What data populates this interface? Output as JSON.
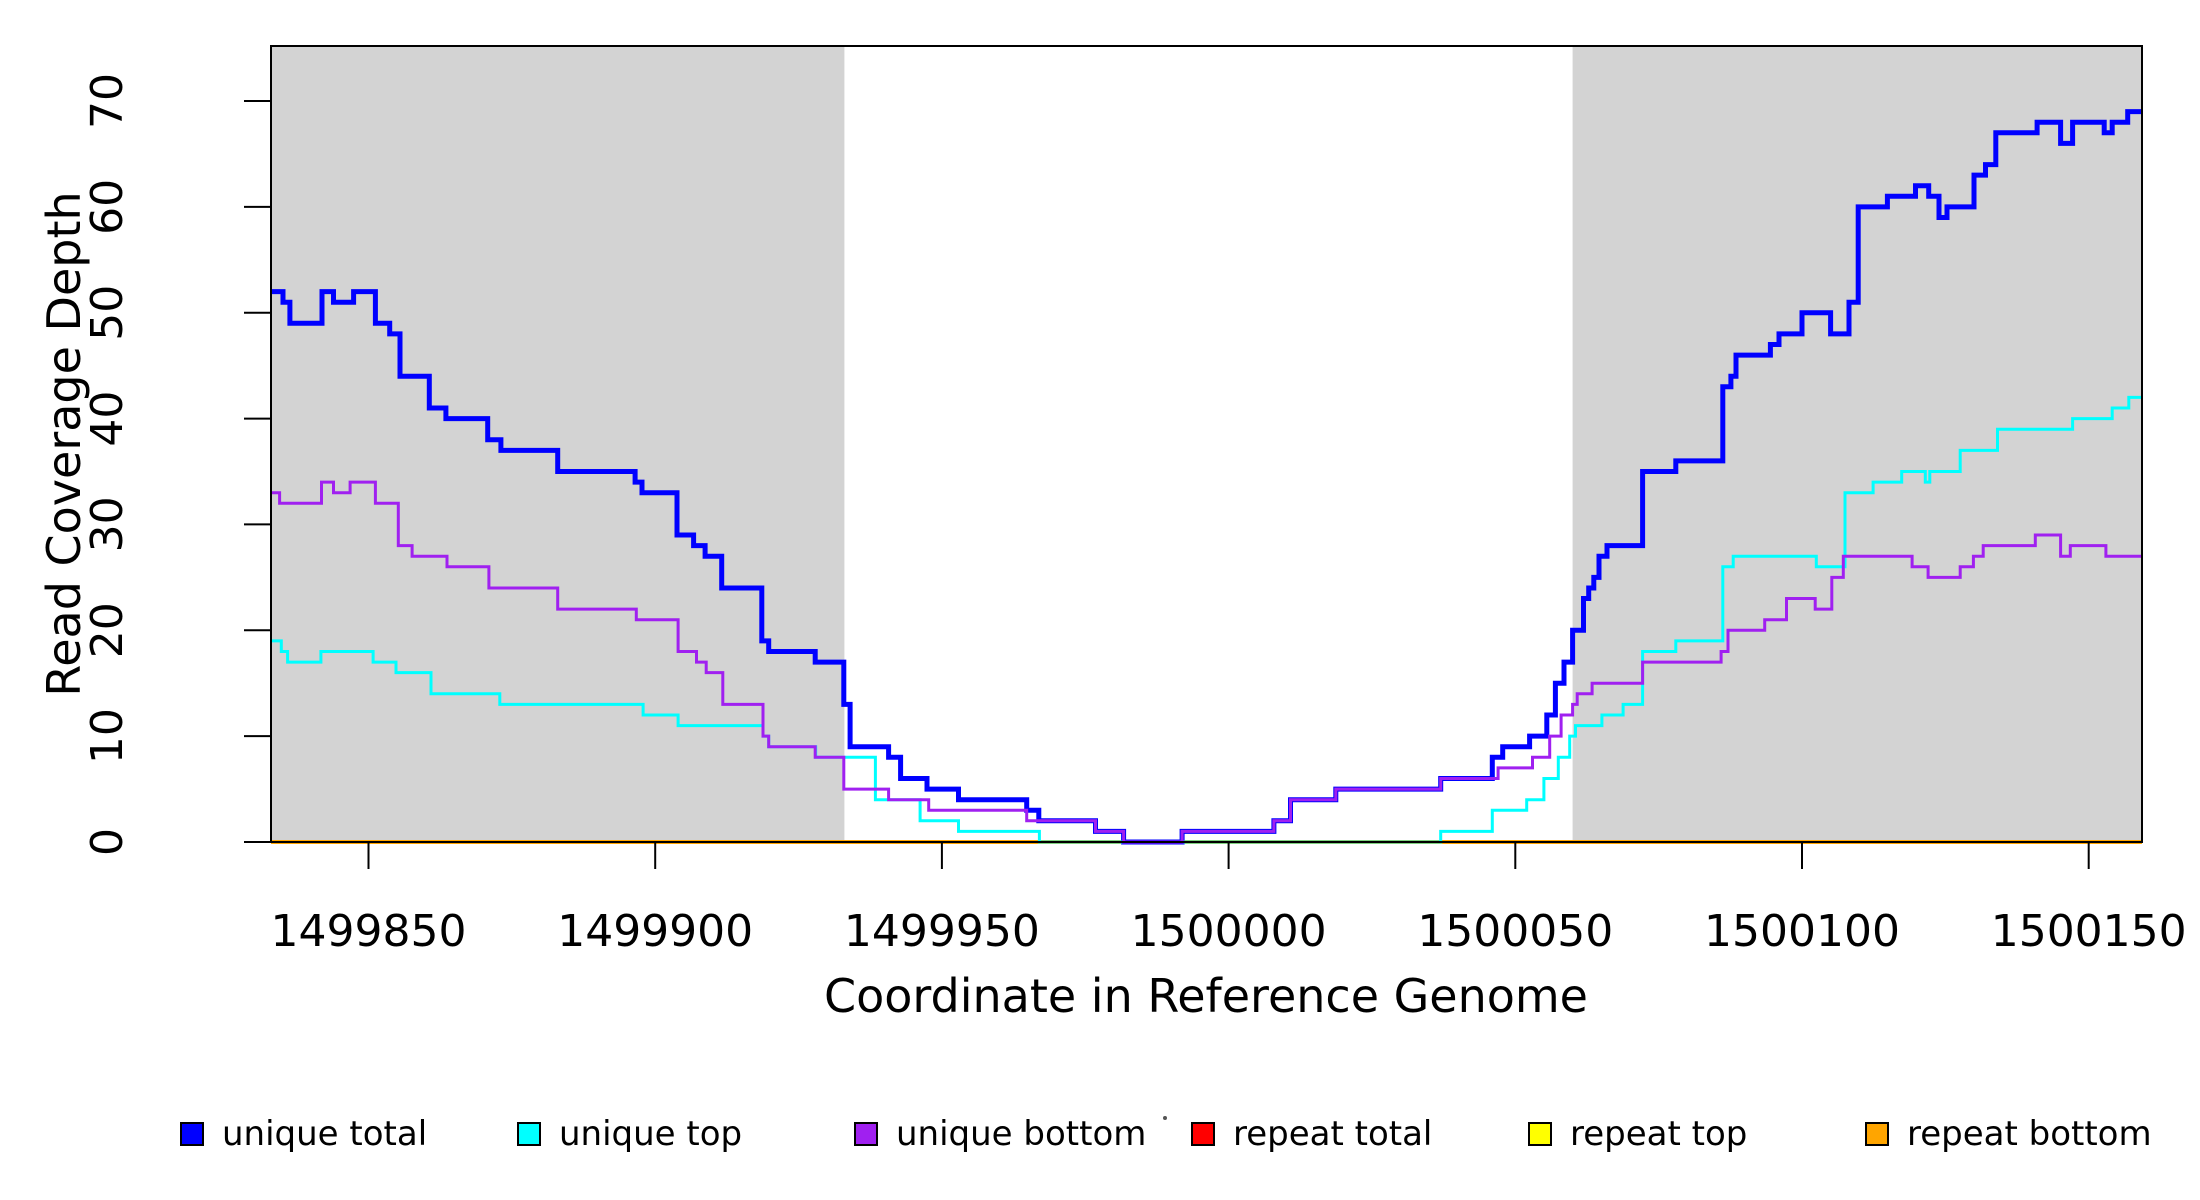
{
  "chart_data": {
    "type": "line",
    "subtype": "step",
    "title": "",
    "xlabel": "Coordinate in Reference Genome",
    "ylabel": "Read Coverage Depth",
    "xlim": [
      1499833,
      1500159.3
    ],
    "ylim": [
      0,
      75.2
    ],
    "grid": false,
    "background_panel": "#ffffff",
    "shaded_regions": [
      {
        "x0": 1499833,
        "x1": 1499933,
        "color": "#D3D3D3"
      },
      {
        "x0": 1500060,
        "x1": 1500159.3,
        "color": "#D3D3D3"
      }
    ],
    "xticks": {
      "values": [
        1499850,
        1499900,
        1499950,
        1500000,
        1500050,
        1500100,
        1500150
      ],
      "labels": [
        "1499850",
        "1499900",
        "1499950",
        "1500000",
        "1500050",
        "1500100",
        "1500150"
      ]
    },
    "yticks": {
      "values": [
        0,
        10,
        20,
        30,
        40,
        50,
        60,
        70
      ],
      "labels": [
        "0",
        "10",
        "20",
        "30",
        "40",
        "50",
        "60",
        "70"
      ]
    },
    "legend": {
      "position": "bottom",
      "orientation": "horizontal"
    },
    "series": [
      {
        "name": "unique total",
        "color": "#0000FF",
        "line_width": 5,
        "points": [
          [
            1499833,
            52
          ],
          [
            1499835.1,
            51
          ],
          [
            1499836.3,
            49
          ],
          [
            1499841.9,
            52
          ],
          [
            1499843.9,
            51
          ],
          [
            1499847.4,
            52
          ],
          [
            1499851.2,
            49
          ],
          [
            1499853.7,
            48
          ],
          [
            1499855.5,
            44
          ],
          [
            1499860.6,
            41
          ],
          [
            1499863.5,
            40
          ],
          [
            1499870.8,
            38
          ],
          [
            1499873.1,
            37
          ],
          [
            1499883,
            35
          ],
          [
            1499896.5,
            34
          ],
          [
            1499897.7,
            33
          ],
          [
            1499903.8,
            29
          ],
          [
            1499906.7,
            28
          ],
          [
            1499908.7,
            27
          ],
          [
            1499911.6,
            24
          ],
          [
            1499918.6,
            19
          ],
          [
            1499919.8,
            18
          ],
          [
            1499927.9,
            17
          ],
          [
            1499932.9,
            13
          ],
          [
            1499934,
            9
          ],
          [
            1499940.7,
            8
          ],
          [
            1499942.8,
            6
          ],
          [
            1499947.4,
            5
          ],
          [
            1499952.9,
            4
          ],
          [
            1499964.8,
            3
          ],
          [
            1499966.9,
            2
          ],
          [
            1499976.8,
            1
          ],
          [
            1499981.7,
            0
          ],
          [
            1499991.9,
            1
          ],
          [
            1500007.9,
            2
          ],
          [
            1500010.8,
            4
          ],
          [
            1500018.7,
            5
          ],
          [
            1500037,
            6
          ],
          [
            1500046,
            8
          ],
          [
            1500047.8,
            9
          ],
          [
            1500052.5,
            10
          ],
          [
            1500055.5,
            12
          ],
          [
            1500057,
            15
          ],
          [
            1500058.5,
            17
          ],
          [
            1500060,
            20
          ],
          [
            1500061.9,
            23
          ],
          [
            1500062.8,
            24
          ],
          [
            1500063.7,
            25
          ],
          [
            1500064.6,
            27
          ],
          [
            1500066,
            28
          ],
          [
            1500072.2,
            35
          ],
          [
            1500078,
            36
          ],
          [
            1500086.2,
            43
          ],
          [
            1500087.6,
            44
          ],
          [
            1500088.5,
            46
          ],
          [
            1500094.5,
            47
          ],
          [
            1500096,
            48
          ],
          [
            1500100,
            50
          ],
          [
            1500105,
            48
          ],
          [
            1500108.2,
            51
          ],
          [
            1500109.8,
            60
          ],
          [
            1500114.9,
            61
          ],
          [
            1500119.8,
            62
          ],
          [
            1500122.1,
            61
          ],
          [
            1500123.9,
            59
          ],
          [
            1500125.3,
            60
          ],
          [
            1500130,
            63
          ],
          [
            1500132,
            64
          ],
          [
            1500133.8,
            67
          ],
          [
            1500141,
            68
          ],
          [
            1500145.1,
            66
          ],
          [
            1500147.2,
            68
          ],
          [
            1500152.7,
            67
          ],
          [
            1500154.1,
            68
          ],
          [
            1500156.8,
            69
          ]
        ]
      },
      {
        "name": "unique top",
        "color": "#00FFFF",
        "line_width": 3,
        "points": [
          [
            1499833,
            19
          ],
          [
            1499834.8,
            18
          ],
          [
            1499835.9,
            17
          ],
          [
            1499841.7,
            18
          ],
          [
            1499850.8,
            17
          ],
          [
            1499854.8,
            16
          ],
          [
            1499860.9,
            14
          ],
          [
            1499872.9,
            13
          ],
          [
            1499897.9,
            12
          ],
          [
            1499904,
            11
          ],
          [
            1499918.8,
            10
          ],
          [
            1499919.8,
            9
          ],
          [
            1499928,
            8
          ],
          [
            1499938.4,
            4
          ],
          [
            1499946.2,
            2
          ],
          [
            1499952.9,
            1
          ],
          [
            1499967,
            0
          ],
          [
            1500037,
            1
          ],
          [
            1500046,
            3
          ],
          [
            1500052,
            4
          ],
          [
            1500055,
            6
          ],
          [
            1500057.5,
            8
          ],
          [
            1500059.5,
            10
          ],
          [
            1500060.5,
            11
          ],
          [
            1500065.1,
            12
          ],
          [
            1500068.8,
            13
          ],
          [
            1500072.2,
            18
          ],
          [
            1500078,
            19
          ],
          [
            1500086.2,
            26
          ],
          [
            1500088,
            27
          ],
          [
            1500102.5,
            26
          ],
          [
            1500107.5,
            33
          ],
          [
            1500112.4,
            34
          ],
          [
            1500117.4,
            35
          ],
          [
            1500121.5,
            34
          ],
          [
            1500122.3,
            35
          ],
          [
            1500127.6,
            37
          ],
          [
            1500134.1,
            39
          ],
          [
            1500147.2,
            40
          ],
          [
            1500154.1,
            41
          ],
          [
            1500157,
            42
          ]
        ]
      },
      {
        "name": "unique bottom",
        "color": "#A020F0",
        "line_width": 3,
        "points": [
          [
            1499833,
            33
          ],
          [
            1499834.5,
            32
          ],
          [
            1499841.8,
            34
          ],
          [
            1499843.9,
            33
          ],
          [
            1499846.8,
            34
          ],
          [
            1499851.2,
            32
          ],
          [
            1499855.2,
            28
          ],
          [
            1499857.6,
            27
          ],
          [
            1499863.7,
            26
          ],
          [
            1499871,
            24
          ],
          [
            1499883,
            22
          ],
          [
            1499896.7,
            21
          ],
          [
            1499904,
            18
          ],
          [
            1499907.2,
            17
          ],
          [
            1499908.9,
            16
          ],
          [
            1499911.8,
            13
          ],
          [
            1499918.8,
            10
          ],
          [
            1499919.8,
            9
          ],
          [
            1499927.9,
            8
          ],
          [
            1499932.9,
            5
          ],
          [
            1499940.7,
            4
          ],
          [
            1499947.7,
            3
          ],
          [
            1499964.8,
            2
          ],
          [
            1499976.8,
            1
          ],
          [
            1499981.7,
            0
          ],
          [
            1499991.9,
            1
          ],
          [
            1500007.9,
            2
          ],
          [
            1500010.8,
            4
          ],
          [
            1500018.7,
            5
          ],
          [
            1500037,
            6
          ],
          [
            1500047,
            7
          ],
          [
            1500053,
            8
          ],
          [
            1500056,
            10
          ],
          [
            1500058,
            12
          ],
          [
            1500060,
            13
          ],
          [
            1500060.8,
            14
          ],
          [
            1500063.4,
            15
          ],
          [
            1500072.2,
            17
          ],
          [
            1500085.9,
            18
          ],
          [
            1500087.1,
            20
          ],
          [
            1500093.5,
            21
          ],
          [
            1500097.3,
            23
          ],
          [
            1500102.3,
            22
          ],
          [
            1500105.2,
            25
          ],
          [
            1500107.2,
            27
          ],
          [
            1500119.2,
            26
          ],
          [
            1500122,
            25
          ],
          [
            1500127.6,
            26
          ],
          [
            1500129.9,
            27
          ],
          [
            1500131.6,
            28
          ],
          [
            1500140.7,
            29
          ],
          [
            1500145.1,
            27
          ],
          [
            1500146.8,
            28
          ],
          [
            1500153,
            27
          ]
        ]
      },
      {
        "name": "repeat total",
        "color": "#FF0000",
        "line_width": 3,
        "points": [
          [
            1499833,
            0
          ],
          [
            1500159.3,
            0
          ]
        ]
      },
      {
        "name": "repeat top",
        "color": "#FFFF00",
        "line_width": 3,
        "points": [
          [
            1499833,
            0
          ],
          [
            1500159.3,
            0
          ]
        ]
      },
      {
        "name": "repeat bottom",
        "color": "#FFA500",
        "line_width": 4,
        "points": [
          [
            1499833,
            0
          ],
          [
            1500159.3,
            0
          ]
        ]
      }
    ]
  }
}
